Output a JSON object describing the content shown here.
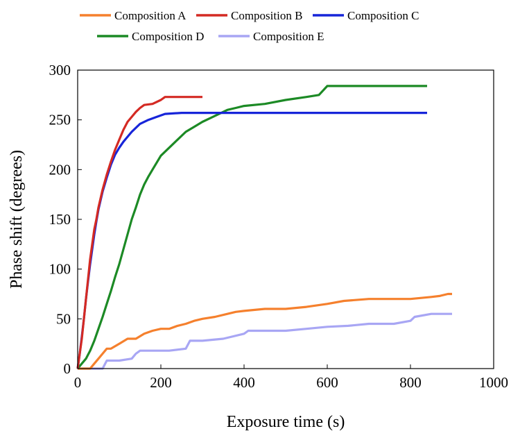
{
  "chart_data": {
    "type": "line",
    "xlabel": "Exposure time (s)",
    "ylabel": "Phase shift (degrees)",
    "xlim": [
      0,
      1000
    ],
    "ylim": [
      0,
      300
    ],
    "xticks": [
      0,
      200,
      400,
      600,
      800,
      1000
    ],
    "yticks": [
      0,
      50,
      100,
      150,
      200,
      250,
      300
    ],
    "grid": false,
    "legend_position": "top",
    "series": [
      {
        "name": "Composition A",
        "color": "#F5802D",
        "x": [
          0,
          30,
          40,
          50,
          60,
          70,
          80,
          100,
          120,
          140,
          160,
          180,
          200,
          220,
          240,
          260,
          280,
          300,
          330,
          360,
          380,
          400,
          450,
          500,
          550,
          600,
          640,
          700,
          760,
          800,
          850,
          870,
          890,
          900
        ],
        "y": [
          0,
          0,
          5,
          10,
          15,
          20,
          20,
          25,
          30,
          30,
          35,
          38,
          40,
          40,
          43,
          45,
          48,
          50,
          52,
          55,
          57,
          58,
          60,
          60,
          62,
          65,
          68,
          70,
          70,
          70,
          72,
          73,
          75,
          75
        ]
      },
      {
        "name": "Composition B",
        "color": "#D42A23",
        "x": [
          0,
          5,
          10,
          15,
          20,
          25,
          30,
          35,
          40,
          45,
          50,
          60,
          70,
          80,
          90,
          100,
          110,
          120,
          130,
          140,
          150,
          160,
          180,
          200,
          210,
          250,
          300
        ],
        "y": [
          0,
          15,
          30,
          50,
          70,
          90,
          110,
          125,
          140,
          150,
          162,
          180,
          195,
          208,
          220,
          230,
          240,
          248,
          253,
          258,
          262,
          265,
          266,
          270,
          273,
          273,
          273
        ]
      },
      {
        "name": "Composition C",
        "color": "#1725D9",
        "x": [
          0,
          5,
          10,
          15,
          20,
          25,
          30,
          35,
          40,
          45,
          50,
          60,
          70,
          80,
          90,
          100,
          110,
          120,
          130,
          140,
          150,
          170,
          190,
          210,
          250,
          300,
          400,
          500,
          600,
          700,
          840
        ],
        "y": [
          0,
          15,
          32,
          50,
          70,
          88,
          105,
          120,
          135,
          148,
          160,
          178,
          192,
          205,
          215,
          222,
          228,
          233,
          238,
          242,
          246,
          250,
          253,
          256,
          257,
          257,
          257,
          257,
          257,
          257,
          257
        ]
      },
      {
        "name": "Composition D",
        "color": "#1C8A25",
        "x": [
          0,
          10,
          20,
          30,
          40,
          50,
          60,
          70,
          80,
          90,
          100,
          110,
          120,
          130,
          140,
          150,
          160,
          170,
          180,
          190,
          200,
          220,
          240,
          260,
          280,
          300,
          320,
          340,
          360,
          380,
          400,
          450,
          500,
          550,
          580,
          600,
          700,
          840
        ],
        "y": [
          0,
          5,
          10,
          18,
          28,
          40,
          52,
          65,
          78,
          92,
          105,
          120,
          135,
          150,
          162,
          175,
          185,
          193,
          200,
          207,
          214,
          222,
          230,
          238,
          243,
          248,
          252,
          256,
          260,
          262,
          264,
          266,
          270,
          273,
          275,
          284,
          284,
          284
        ]
      },
      {
        "name": "Composition E",
        "color": "#A8A6F4",
        "x": [
          0,
          60,
          70,
          100,
          130,
          140,
          150,
          180,
          220,
          260,
          270,
          300,
          350,
          400,
          410,
          450,
          500,
          550,
          600,
          650,
          700,
          760,
          800,
          810,
          850,
          880,
          900
        ],
        "y": [
          0,
          0,
          8,
          8,
          10,
          15,
          18,
          18,
          18,
          20,
          28,
          28,
          30,
          35,
          38,
          38,
          38,
          40,
          42,
          43,
          45,
          45,
          48,
          52,
          55,
          55,
          55
        ]
      }
    ]
  }
}
